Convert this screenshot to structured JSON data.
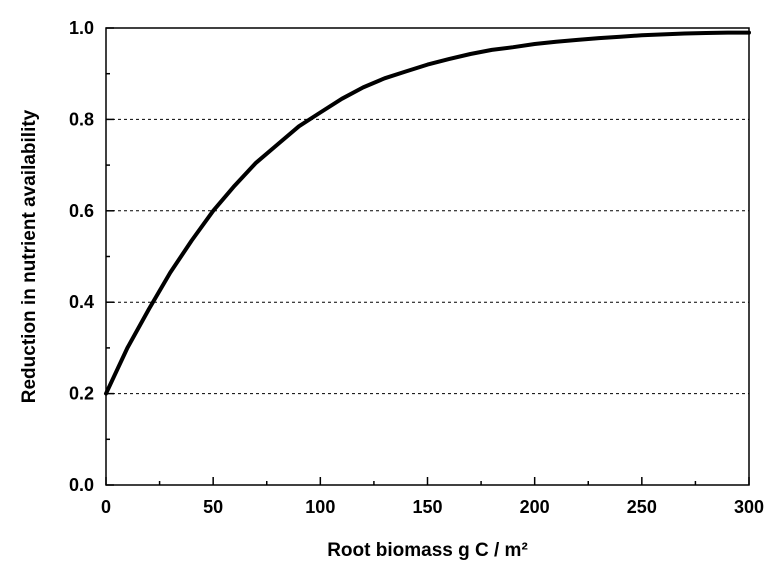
{
  "chart_data": {
    "type": "line",
    "title": "",
    "xlabel": "Root biomass g C / m²",
    "ylabel": "Reduction in nutrient availability",
    "xlim": [
      0,
      300
    ],
    "ylim": [
      0.0,
      1.0
    ],
    "x_ticks": [
      "0",
      "50",
      "100",
      "150",
      "200",
      "250",
      "300"
    ],
    "y_ticks": [
      "0.0",
      "0.2",
      "0.4",
      "0.6",
      "0.8",
      "1.0"
    ],
    "grid": "horizontal dashed at 0.2, 0.4, 0.6, 0.8",
    "legend": "none",
    "series": [
      {
        "color": "#000000",
        "x": [
          0,
          10,
          20,
          30,
          40,
          50,
          60,
          70,
          80,
          90,
          100,
          110,
          120,
          130,
          140,
          150,
          160,
          170,
          180,
          190,
          200,
          210,
          220,
          230,
          240,
          250,
          260,
          270,
          280,
          290,
          300
        ],
        "y": [
          0.2,
          0.3,
          0.385,
          0.465,
          0.535,
          0.6,
          0.655,
          0.705,
          0.745,
          0.785,
          0.815,
          0.845,
          0.87,
          0.89,
          0.905,
          0.92,
          0.932,
          0.943,
          0.952,
          0.958,
          0.965,
          0.97,
          0.974,
          0.978,
          0.981,
          0.984,
          0.986,
          0.988,
          0.989,
          0.99,
          0.99
        ]
      }
    ]
  }
}
